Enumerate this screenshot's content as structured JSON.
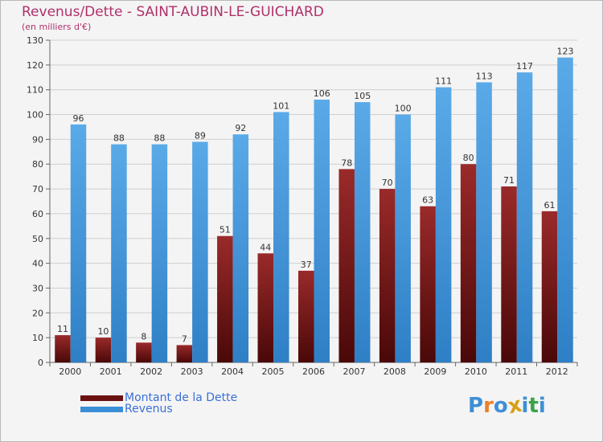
{
  "title": "Revenus/Dette - SAINT-AUBIN-LE-GUICHARD",
  "subtitle": "(en milliers d'€)",
  "colors": {
    "dette": "#7a1a1a",
    "revenus": "#4a9de0",
    "title": "#b0306a",
    "legend_text": "#3a6fd8"
  },
  "legend": [
    {
      "label": "Montant de la Dette",
      "color": "#6b1111"
    },
    {
      "label": "Revenus",
      "color": "#3a8fd6"
    }
  ],
  "logo": {
    "text": "Proxiti",
    "letters": [
      "P",
      "r",
      "o",
      "x",
      "i",
      "t",
      "i"
    ],
    "letter_colors": [
      "#3d8fd5",
      "#e8812a",
      "#3d8fd5",
      "#d8a019",
      "#3d8fd5",
      "#3aa34a",
      "#3d8fd5"
    ]
  },
  "chart_data": {
    "type": "bar",
    "title": "Revenus/Dette - SAINT-AUBIN-LE-GUICHARD",
    "subtitle": "(en milliers d'€)",
    "xlabel": "",
    "ylabel": "",
    "ylim": [
      0,
      130
    ],
    "yticks": [
      0,
      10,
      20,
      30,
      40,
      50,
      60,
      70,
      80,
      90,
      100,
      110,
      120,
      130
    ],
    "grid": true,
    "categories": [
      "2000",
      "2001",
      "2002",
      "2003",
      "2004",
      "2005",
      "2006",
      "2007",
      "2008",
      "2009",
      "2010",
      "2011",
      "2012"
    ],
    "series": [
      {
        "name": "Montant de la Dette",
        "values": [
          11,
          10,
          8,
          7,
          51,
          44,
          37,
          78,
          70,
          63,
          80,
          71,
          61
        ]
      },
      {
        "name": "Revenus",
        "values": [
          96,
          88,
          88,
          89,
          92,
          101,
          106,
          105,
          100,
          111,
          113,
          117,
          123
        ]
      }
    ],
    "legend_position": "bottom-left"
  }
}
